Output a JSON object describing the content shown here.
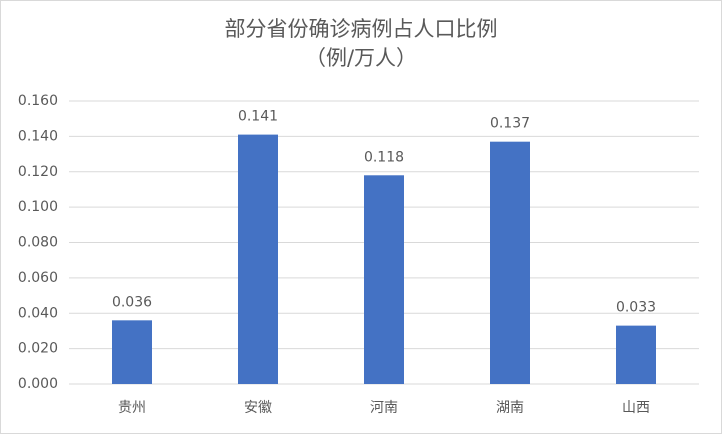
{
  "chart_data": {
    "type": "bar",
    "title": "部分省份确诊病例占人口比例",
    "subtitle": "（例/万人）",
    "categories": [
      "贵州",
      "安徽",
      "河南",
      "湖南",
      "山西"
    ],
    "values": [
      0.036,
      0.141,
      0.118,
      0.137,
      0.033
    ],
    "color": "#4472c4",
    "ylim": [
      0,
      0.16
    ],
    "yticks": [
      {
        "value": 0,
        "label": "0.000"
      },
      {
        "value": 0.02,
        "label": "0.020"
      },
      {
        "value": 0.04,
        "label": "0.040"
      },
      {
        "value": 0.06,
        "label": "0.060"
      },
      {
        "value": 0.08,
        "label": "0.080"
      },
      {
        "value": 0.1,
        "label": "0.100"
      },
      {
        "value": 0.12,
        "label": "0.120"
      },
      {
        "value": 0.14,
        "label": "0.140"
      },
      {
        "value": 0.16,
        "label": "0.160"
      }
    ],
    "grid": true
  }
}
